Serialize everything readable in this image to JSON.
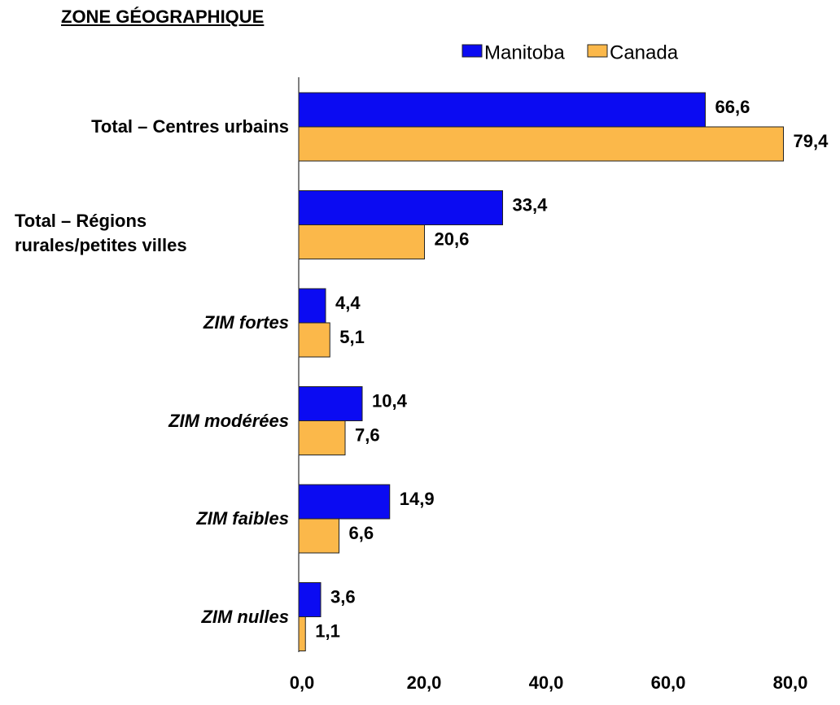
{
  "chart_data": {
    "type": "hbar",
    "title": "ZONE GÉOGRAPHIQUE",
    "categories": [
      "Total – Centres urbains",
      "Total – Régions rurales/petites villes",
      "ZIM fortes",
      "ZIM modérées",
      "ZIM faibles",
      "ZIM nulles"
    ],
    "series": [
      {
        "name": "Manitoba",
        "color": "#0b0bf2",
        "values": [
          66.6,
          33.4,
          4.4,
          10.4,
          14.9,
          3.6
        ],
        "value_labels": [
          "66,6",
          "33,4",
          "4,4",
          "10,4",
          "14,9",
          "3,6"
        ]
      },
      {
        "name": "Canada",
        "color": "#fbb84a",
        "values": [
          79.4,
          20.6,
          5.1,
          7.6,
          6.6,
          1.1
        ],
        "value_labels": [
          "79,4",
          "20,6",
          "5,1",
          "7,6",
          "6,6",
          "1,1"
        ]
      }
    ],
    "xlim": [
      0,
      80
    ],
    "xticks": [
      {
        "value": 0,
        "label": "0,0"
      },
      {
        "value": 20,
        "label": "20,0"
      },
      {
        "value": 40,
        "label": "40,0"
      },
      {
        "value": 60,
        "label": "60,0"
      },
      {
        "value": 80,
        "label": "80,0"
      }
    ],
    "grid": false,
    "legend": "top"
  }
}
